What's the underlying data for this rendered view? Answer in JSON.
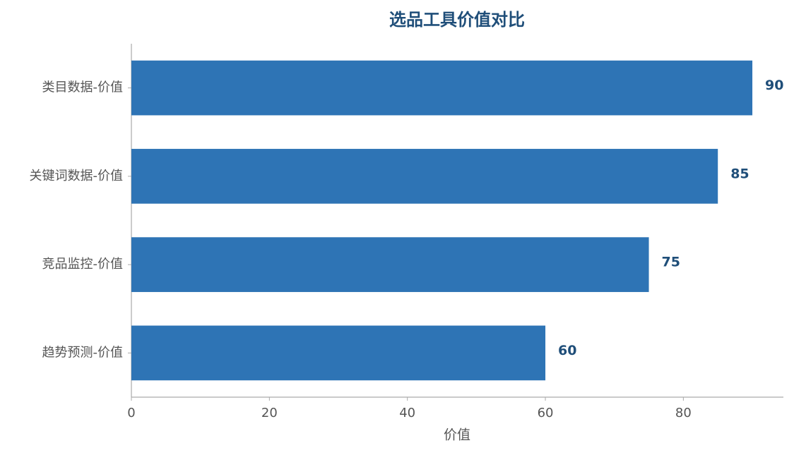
{
  "chart_data": {
    "type": "hbar",
    "title": "选品工具价值对比",
    "x_label": "价值",
    "categories": [
      "类目数据-价值",
      "关键词数据-价值",
      "竞品监控-价值",
      "趋势预测-价值"
    ],
    "values": [
      90,
      85,
      75,
      60
    ],
    "color": "#2e74b5",
    "label_color": "#1f4e79",
    "xlim": [
      0,
      94.5
    ],
    "xticks": [
      0,
      20,
      40,
      60,
      80
    ]
  }
}
